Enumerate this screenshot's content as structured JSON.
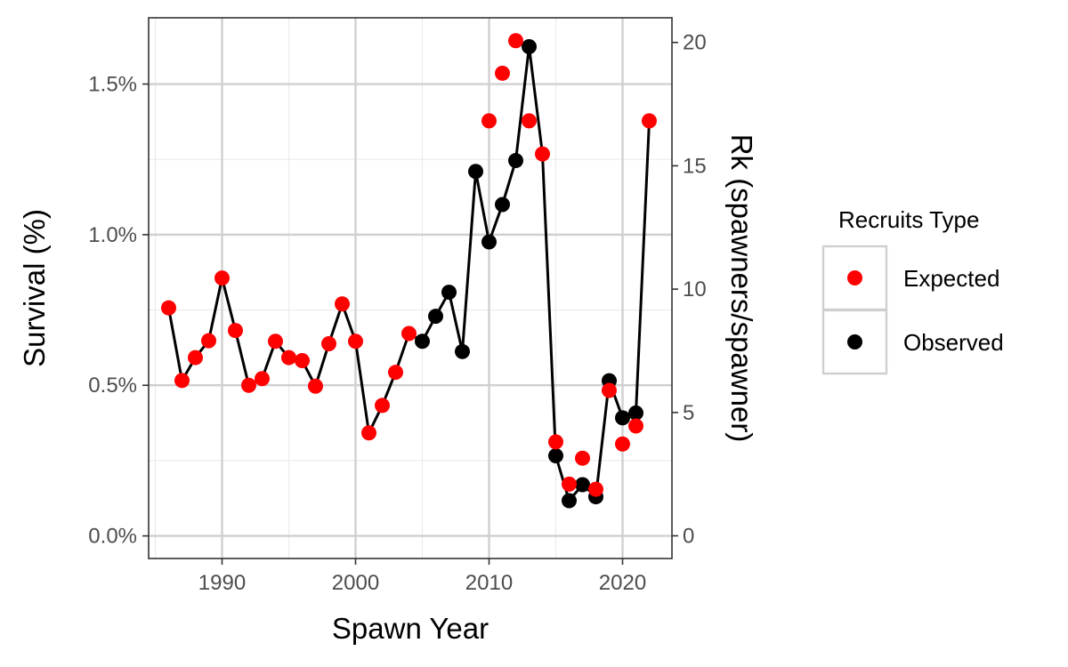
{
  "chart_data": {
    "type": "line",
    "xlabel": "Spawn Year",
    "ylabel": "Survival (%)",
    "y2label": "Rk (spawners/spawner)",
    "xlim": [
      1984.5,
      2023.7
    ],
    "ylim": [
      -0.00075,
      0.0172
    ],
    "y2lim": [
      -0.92,
      21.0
    ],
    "xticks": [
      1990,
      2000,
      2010,
      2020
    ],
    "yticks": [
      0,
      0.005,
      0.01,
      0.015
    ],
    "ytick_labels": [
      "0.0%",
      "0.5%",
      "1.0%",
      "1.5%"
    ],
    "y2ticks": [
      0,
      5,
      10,
      15,
      20
    ],
    "y2tick_labels": [
      "0",
      "5",
      "10",
      "15",
      "20"
    ],
    "grid": true,
    "legend": {
      "title": "Recruits Type",
      "position": "right",
      "entries": [
        {
          "label": "Expected",
          "color": "#ff0000"
        },
        {
          "label": "Observed",
          "color": "#000000"
        }
      ]
    },
    "series": [
      {
        "name": "Survival",
        "line_color": "#000000",
        "x": [
          1986,
          1987,
          1988,
          1989,
          1990,
          1991,
          1992,
          1993,
          1994,
          1995,
          1996,
          1997,
          1998,
          1999,
          2000,
          2001,
          2002,
          2003,
          2004,
          2005,
          2006,
          2007,
          2008,
          2009,
          2010,
          2011,
          2012,
          2013,
          2014,
          2015,
          2016,
          2017,
          2018,
          2019,
          2020,
          2021,
          2022
        ],
        "y": [
          0.00757,
          0.00516,
          0.00592,
          0.00648,
          0.00856,
          0.00682,
          0.005,
          0.00522,
          0.00646,
          0.00592,
          0.00582,
          0.00497,
          0.00638,
          0.0077,
          0.00646,
          0.00342,
          0.00433,
          0.00543,
          0.00672,
          0.00646,
          0.00729,
          0.00809,
          0.00612,
          0.0121,
          0.00976,
          0.011,
          0.01246,
          0.01624,
          0.01268,
          0.00266,
          0.00117,
          0.0017,
          0.0013,
          0.00515,
          0.00392,
          0.00408,
          0.01378
        ],
        "type": [
          "Expected",
          "Expected",
          "Expected",
          "Expected",
          "Expected",
          "Expected",
          "Expected",
          "Expected",
          "Expected",
          "Expected",
          "Expected",
          "Expected",
          "Expected",
          "Expected",
          "Expected",
          "Expected",
          "Expected",
          "Expected",
          "Expected",
          "Observed",
          "Observed",
          "Observed",
          "Observed",
          "Observed",
          "Observed",
          "Observed",
          "Observed",
          "Observed",
          "Expected",
          "Observed",
          "Observed",
          "Observed",
          "Observed",
          "Observed",
          "Observed",
          "Observed",
          "Expected"
        ]
      }
    ],
    "extra_points": [
      {
        "x": 2010,
        "y": 0.01378,
        "type": "Expected"
      },
      {
        "x": 2011,
        "y": 0.01536,
        "type": "Expected"
      },
      {
        "x": 2012,
        "y": 0.01644,
        "type": "Expected"
      },
      {
        "x": 2013,
        "y": 0.01378,
        "type": "Expected"
      },
      {
        "x": 2015,
        "y": 0.00312,
        "type": "Expected"
      },
      {
        "x": 2016,
        "y": 0.00172,
        "type": "Expected"
      },
      {
        "x": 2017,
        "y": 0.00258,
        "type": "Expected"
      },
      {
        "x": 2018,
        "y": 0.00155,
        "type": "Expected"
      },
      {
        "x": 2019,
        "y": 0.00483,
        "type": "Expected"
      },
      {
        "x": 2020,
        "y": 0.00305,
        "type": "Expected"
      },
      {
        "x": 2021,
        "y": 0.00365,
        "type": "Expected"
      }
    ]
  }
}
